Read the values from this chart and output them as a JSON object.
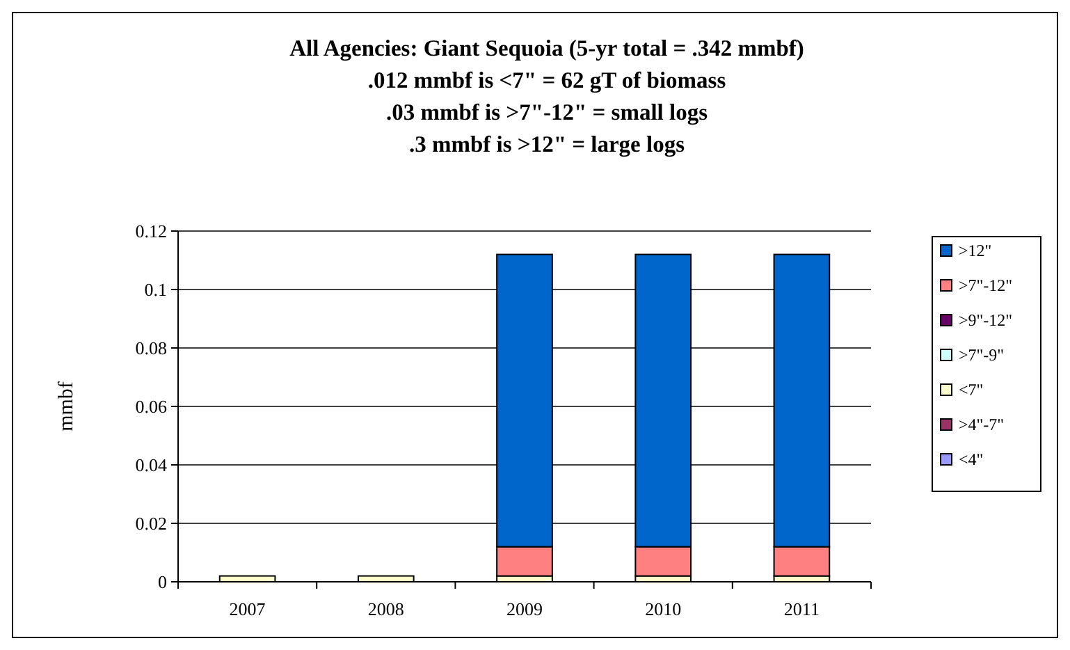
{
  "chart_data": {
    "type": "bar",
    "title": "All Agencies: Giant Sequoia (5-yr total = .342 mmbf)",
    "subtitle": ".012 mmbf is <7\" = 62 gT of biomass\n.03 mmbf is >7\"-12\" = small logs\n.3 mmbf is >12\" = large logs",
    "ylabel": "mmbf",
    "categories": [
      "2007",
      "2008",
      "2009",
      "2010",
      "2011"
    ],
    "stacked": true,
    "grid": "y",
    "legend": "right",
    "ylim": [
      0,
      0.12
    ],
    "yticks": [
      0,
      0.02,
      0.04,
      0.06,
      0.08,
      0.1,
      0.12
    ],
    "series": [
      {
        "name": "<4\"",
        "color": "#9999ff",
        "values": [
          0,
          0,
          0,
          0,
          0
        ]
      },
      {
        "name": ">4\"-7\"",
        "color": "#993366",
        "values": [
          0,
          0,
          0,
          0,
          0
        ]
      },
      {
        "name": "<7\"",
        "color": "#ffffcc",
        "values": [
          0.002,
          0.002,
          0.002,
          0.002,
          0.002
        ]
      },
      {
        "name": ">7\"-9\"",
        "color": "#ccffff",
        "values": [
          0,
          0,
          0,
          0,
          0
        ]
      },
      {
        "name": ">9\"-12\"",
        "color": "#660066",
        "values": [
          0,
          0,
          0,
          0,
          0
        ]
      },
      {
        "name": ">7\"-12\"",
        "color": "#ff8080",
        "values": [
          0,
          0,
          0.01,
          0.01,
          0.01
        ]
      },
      {
        "name": ">12\"",
        "color": "#0066cc",
        "values": [
          0,
          0,
          0.1,
          0.1,
          0.1
        ]
      }
    ]
  }
}
